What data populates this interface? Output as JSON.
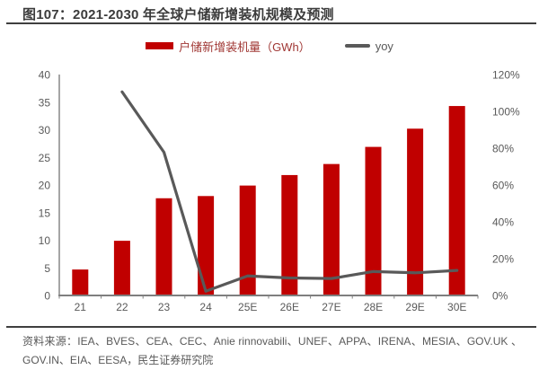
{
  "figure": {
    "title": "图107：2021-2030 年全球户储新增装机规模及预测"
  },
  "legend": {
    "bar_label": "户储新增装机量（GWh）",
    "line_label": "yoy"
  },
  "chart_data": {
    "type": "bar",
    "subtype": "bar+line combo, dual y-axis",
    "title": "2021-2030 年全球户储新增装机规模及预测",
    "categories": [
      "21",
      "22",
      "23",
      "24",
      "25E",
      "26E",
      "27E",
      "28E",
      "29E",
      "30E"
    ],
    "series": [
      {
        "name": "户储新增装机量（GWh）",
        "type": "bar",
        "axis": "left",
        "values": [
          4.7,
          9.9,
          17.6,
          18.0,
          19.9,
          21.8,
          23.8,
          26.9,
          30.2,
          34.3
        ]
      },
      {
        "name": "yoy",
        "type": "line",
        "axis": "right",
        "unit": "%",
        "values": [
          null,
          110.6,
          77.8,
          2.3,
          10.6,
          9.5,
          9.2,
          13.0,
          12.3,
          13.6
        ]
      }
    ],
    "left_axis": {
      "min": 0,
      "max": 40,
      "step": 5,
      "ticks": [
        "0",
        "5",
        "10",
        "15",
        "20",
        "25",
        "30",
        "35",
        "40"
      ]
    },
    "right_axis": {
      "min": 0,
      "max": 120,
      "step": 20,
      "ticks": [
        "0%",
        "20%",
        "40%",
        "60%",
        "80%",
        "100%",
        "120%"
      ]
    },
    "grid": false,
    "legend_position": "top"
  },
  "footer": {
    "source": "资料来源：IEA、BVES、CEA、CEC、Anie rinnovabili、UNEF、APPA、IRENA、MESIA、GOV.UK 、GOV.IN、EIA、EESA，民生证券研究院"
  },
  "colors": {
    "bar": "#c00000",
    "line": "#595959",
    "axis": "#7f7f7f",
    "tick_text": "#595959",
    "legend_bar_text": "#a03734",
    "legend_line_text": "#595959",
    "title_text": "#3b3b3b",
    "rule": "#3f3f3f"
  }
}
